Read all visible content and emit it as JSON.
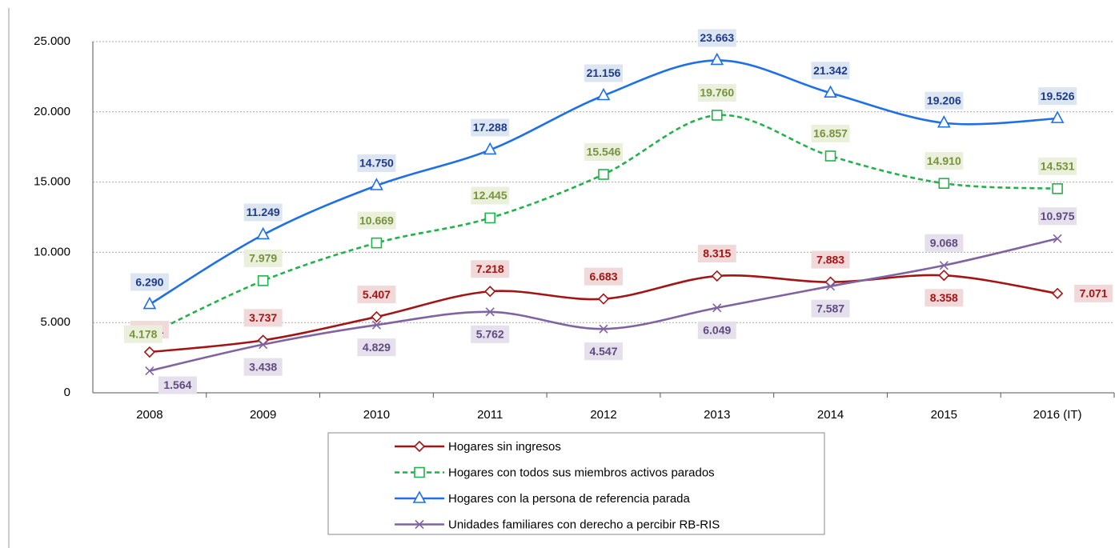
{
  "chart_data": {
    "type": "line",
    "categories": [
      "2008",
      "2009",
      "2010",
      "2011",
      "2012",
      "2013",
      "2014",
      "2015",
      "2016 (IT)"
    ],
    "series": [
      {
        "name": "Hogares sin ingresos",
        "color": "#a31515",
        "marker": "diamond",
        "dashed": false,
        "values": [
          2901,
          3737,
          5407,
          7218,
          6683,
          8315,
          7883,
          8358,
          7071
        ],
        "value_labels": [
          "2.901",
          "3.737",
          "5.407",
          "7.218",
          "6.683",
          "8.315",
          "7.883",
          "8.358",
          "7.071"
        ]
      },
      {
        "name": "Hogares con todos sus miembros activos parados",
        "color": "#22b14c",
        "marker": "square",
        "dashed": true,
        "values": [
          4178,
          7979,
          10669,
          12445,
          15546,
          19760,
          16857,
          14910,
          14531
        ],
        "value_labels": [
          "4.178",
          "7.979",
          "10.669",
          "12.445",
          "15.546",
          "19.760",
          "16.857",
          "14.910",
          "14.531"
        ]
      },
      {
        "name": "Hogares con la persona de referencia parada",
        "color": "#1f6fe8",
        "marker": "triangle",
        "dashed": false,
        "values": [
          6290,
          11249,
          14750,
          17288,
          21156,
          23663,
          21342,
          19206,
          19526
        ],
        "value_labels": [
          "6.290",
          "11.249",
          "14.750",
          "17.288",
          "21.156",
          "23.663",
          "21.342",
          "19.206",
          "19.526"
        ]
      },
      {
        "name": "Unidades familiares con derecho a percibir RB-RIS",
        "color": "#8064a2",
        "marker": "x",
        "dashed": false,
        "values": [
          1564,
          3438,
          4829,
          5762,
          4547,
          6049,
          7587,
          9068,
          10975
        ],
        "value_labels": [
          "1.564",
          "3.438",
          "4.829",
          "5.762",
          "4.547",
          "6.049",
          "7.587",
          "9.068",
          "10.975"
        ]
      }
    ],
    "ylim": [
      0,
      25000
    ],
    "yticks": [
      0,
      {
        "value": 5000,
        "label": "5.000"
      },
      {
        "value": 10000,
        "label": "10.000"
      },
      {
        "value": 15000,
        "label": "15.000"
      },
      {
        "value": 20000,
        "label": "20.000"
      },
      {
        "value": 25000,
        "label": "25.000"
      }
    ],
    "grid": true,
    "legend": "bottom"
  }
}
